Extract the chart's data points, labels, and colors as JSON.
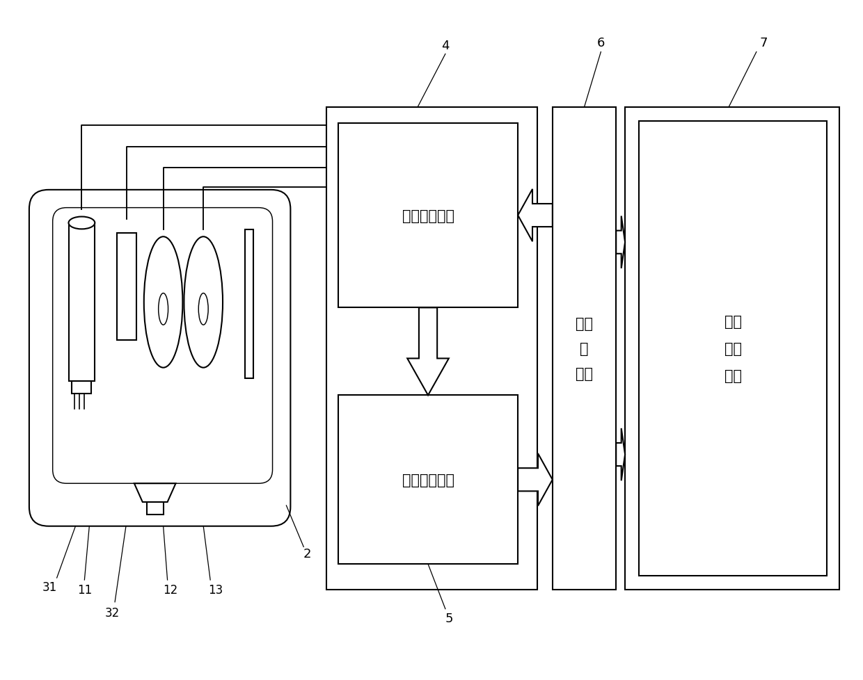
{
  "bg_color": "#ffffff",
  "line_color": "#000000",
  "lw": 1.5,
  "fig_width": 12.4,
  "fig_height": 9.79,
  "labels": {
    "potentiostat": "恒电位仪模块",
    "signal_proc": "信号处理模块",
    "mcu": "单片\n机\n模块",
    "display_storage": "显示\n存储\n模块",
    "label_2": "2",
    "label_4": "4",
    "label_5": "5",
    "label_6": "6",
    "label_7": "7",
    "label_11": "11",
    "label_12": "12",
    "label_13": "13",
    "label_31": "31",
    "label_32": "32"
  },
  "font_size_box": 15,
  "font_size_label": 13
}
